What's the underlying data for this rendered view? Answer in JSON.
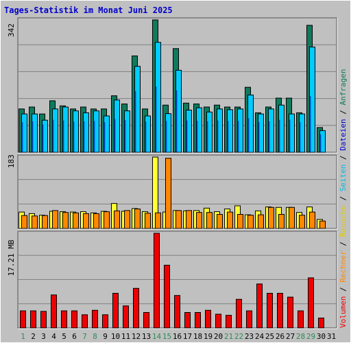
{
  "chart_data": {
    "type": "bar",
    "title": "Tages-Statistik im Monat Juni 2025",
    "categories": [
      "1",
      "2",
      "3",
      "4",
      "5",
      "6",
      "7",
      "8",
      "9",
      "10",
      "11",
      "12",
      "13",
      "14",
      "15",
      "16",
      "17",
      "18",
      "19",
      "20",
      "21",
      "22",
      "23",
      "24",
      "25",
      "26",
      "27",
      "28",
      "29",
      "30",
      "31"
    ],
    "weekend_days": [
      "1",
      "7",
      "8",
      "14",
      "15",
      "21",
      "22",
      "28",
      "29"
    ],
    "colors": {
      "anfragen": "#0f7a5c",
      "dateien": "#00ccff",
      "seiten": "#00bbdd",
      "besuche": "#ffff33",
      "rechner": "#ff8800",
      "volumen": "#ee0000",
      "weekday_label": "#000000",
      "weekend_label": "#2e8b57",
      "title": "#0000cc"
    },
    "panels": [
      {
        "id": "hits",
        "max_label": "342",
        "ylim": [
          0,
          342
        ],
        "series": [
          {
            "name": "Anfragen",
            "color": "#0f7a5c",
            "values": [
              112,
              117,
              99,
              133,
              120,
              112,
              117,
              112,
              112,
              146,
              125,
              249,
              112,
              342,
              122,
              268,
              127,
              125,
              117,
              122,
              117,
              117,
              168,
              102,
              117,
              140,
              140,
              102,
              328,
              64,
              0
            ]
          },
          {
            "name": "Dateien",
            "color": "#00ccff",
            "values": [
              99,
              99,
              83,
              112,
              117,
              107,
              102,
              107,
              94,
              135,
              107,
              222,
              94,
              284,
              100,
              212,
              109,
              115,
              104,
              112,
              110,
              112,
              148,
              99,
              112,
              122,
              99,
              99,
              272,
              56,
              0
            ]
          }
        ],
        "overlay_seiten": [
          78,
          80,
          72,
          84,
          82,
          79,
          80,
          81,
          78,
          86,
          83,
          158,
          79,
          170,
          81,
          160,
          82,
          81,
          80,
          82,
          81,
          81,
          88,
          78,
          80,
          84,
          84,
          78,
          145,
          46,
          0
        ]
      },
      {
        "id": "visits",
        "max_label": "183",
        "ylim": [
          0,
          183
        ],
        "series": [
          {
            "name": "Besuche",
            "color": "#ffff33",
            "values": [
              42,
              38,
              34,
              44,
              43,
              42,
              43,
              40,
              44,
              64,
              44,
              51,
              43,
              183,
              42,
              46,
              45,
              46,
              52,
              43,
              50,
              58,
              35,
              45,
              55,
              54,
              54,
              41,
              55,
              23,
              0
            ]
          },
          {
            "name": "Rechner",
            "color": "#ff8800",
            "values": [
              33,
              32,
              33,
              46,
              41,
              40,
              38,
              38,
              43,
              45,
              46,
              50,
              39,
              40,
              180,
              46,
              46,
              41,
              41,
              36,
              42,
              36,
              34,
              35,
              54,
              36,
              54,
              34,
              42,
              19,
              0
            ]
          }
        ]
      },
      {
        "id": "volume",
        "max_label": "17.21 MB",
        "ylim": [
          0,
          17.21
        ],
        "series": [
          {
            "name": "Volumen",
            "color": "#ee0000",
            "values": [
              3.1,
              3.1,
              3.0,
              6.0,
              3.1,
              3.1,
              2.4,
              3.2,
              2.4,
              6.3,
              4.0,
              7.2,
              2.8,
              17.21,
              11.4,
              5.9,
              2.8,
              2.8,
              3.2,
              2.5,
              2.3,
              5.2,
              3.1,
              8.0,
              6.3,
              6.3,
              5.6,
              3.1,
              9.1,
              1.8,
              0
            ]
          }
        ]
      }
    ],
    "legend_right": [
      {
        "text": "Volumen",
        "color": "#ee0000"
      },
      {
        "text": "/",
        "color": "#000000"
      },
      {
        "text": "Rechner",
        "color": "#ff8800"
      },
      {
        "text": "/",
        "color": "#000000"
      },
      {
        "text": "Besuche",
        "color": "#ddcc00"
      },
      {
        "text": "/",
        "color": "#000000"
      },
      {
        "text": "Seiten",
        "color": "#00bbdd"
      },
      {
        "text": "/",
        "color": "#000000"
      },
      {
        "text": "Dateien",
        "color": "#0000cc"
      },
      {
        "text": "/",
        "color": "#000000"
      },
      {
        "text": "Anfragen",
        "color": "#0f7a5c"
      }
    ]
  }
}
